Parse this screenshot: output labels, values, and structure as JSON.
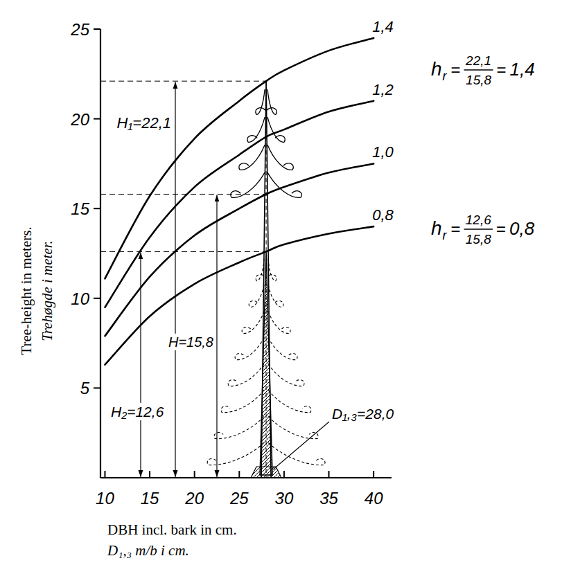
{
  "chart_data": {
    "type": "line",
    "xlabel": [
      "DBH incl. bark in cm.",
      "D₁,₃ m/b i cm."
    ],
    "ylabel": [
      "Tree-height in meters.",
      "Trehøgde i meter."
    ],
    "x": [
      10,
      15,
      20,
      25,
      28,
      30,
      35,
      40
    ],
    "series": [
      {
        "name": "1,4",
        "color": "#000000",
        "values": [
          11.1,
          15.7,
          18.9,
          21.0,
          22.1,
          22.7,
          23.8,
          24.5
        ]
      },
      {
        "name": "1,2",
        "color": "#000000",
        "values": [
          9.5,
          13.4,
          16.2,
          18.0,
          19.0,
          19.4,
          20.4,
          21.0
        ]
      },
      {
        "name": "1,0",
        "color": "#000000",
        "values": [
          7.9,
          11.2,
          13.5,
          15.0,
          15.8,
          16.2,
          17.0,
          17.5
        ]
      },
      {
        "name": "0,8",
        "color": "#000000",
        "values": [
          6.3,
          9.0,
          10.8,
          12.0,
          12.6,
          13.0,
          13.6,
          14.0
        ]
      }
    ],
    "xlim": [
      9.5,
      42
    ],
    "xticks": [
      10,
      15,
      20,
      25,
      30,
      35,
      40
    ],
    "ylim": [
      0,
      25
    ],
    "yticks": [
      5,
      10,
      15,
      20,
      25
    ],
    "grid": false,
    "annotations": [
      {
        "text": "H₁=22,1",
        "value": 22.1
      },
      {
        "text": "H=15,8",
        "value": 15.8
      },
      {
        "text": "H₂=12,6",
        "value": 12.6
      },
      {
        "text": "D₁,₃=28,0",
        "value": 28.0
      }
    ],
    "formulas": [
      {
        "lhs": "h",
        "lhs_sub": "r",
        "relation": "=",
        "numerator": "22,1",
        "denominator": "15,8",
        "result": "1,4"
      },
      {
        "lhs": "h",
        "lhs_sub": "r",
        "relation": "=",
        "numerator": "12,6",
        "denominator": "15,8",
        "result": "0,8"
      }
    ]
  }
}
